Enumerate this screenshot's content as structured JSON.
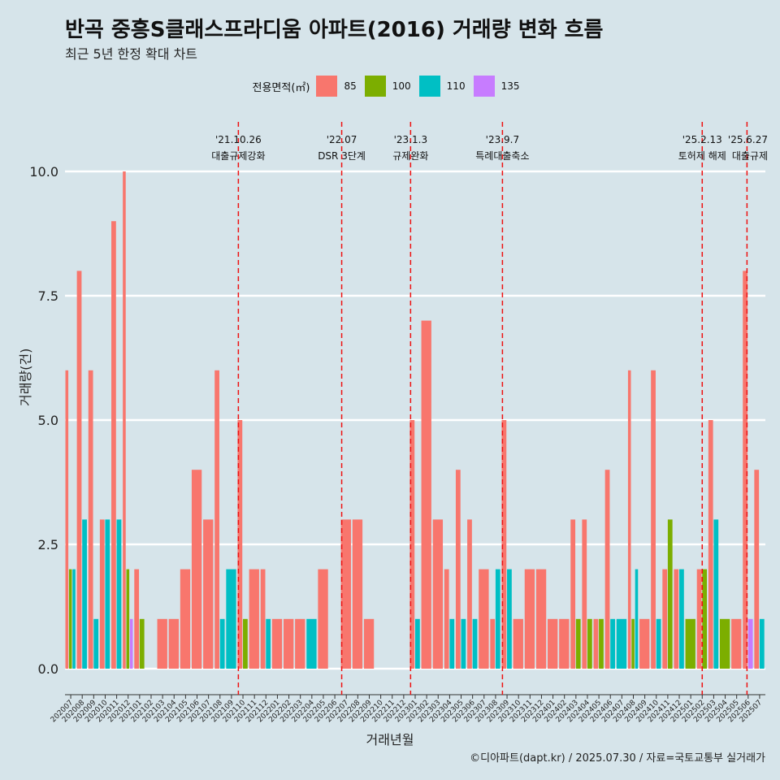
{
  "title": "반곡 중흥S클래스프라디움 아파트(2016) 거래량 변화 흐름",
  "subtitle": "최근 5년 한정 확대 차트",
  "caption": "©디아파트(dapt.kr) / 2025.07.30 / 자료=국토교통부 실거래가",
  "legend": {
    "title": "전용면적(㎡)",
    "items": [
      {
        "label": "85",
        "color": "#f8766d"
      },
      {
        "label": "100",
        "color": "#7cae00"
      },
      {
        "label": "110",
        "color": "#00bfc4"
      },
      {
        "label": "135",
        "color": "#c77cff"
      }
    ]
  },
  "chart_data": {
    "type": "bar",
    "title": "반곡 중흥S클래스프라디움 아파트(2016) 거래량 변화 흐름",
    "xlabel": "거래년월",
    "ylabel": "거래량(건)",
    "ylim": [
      0,
      10
    ],
    "yticks": [
      "0.0",
      "2.5",
      "5.0",
      "7.5",
      "10.0"
    ],
    "categories": [
      "202007",
      "202008",
      "202009",
      "202010",
      "202011",
      "202012",
      "202101",
      "202102",
      "202103",
      "202104",
      "202105",
      "202106",
      "202107",
      "202108",
      "202109",
      "202110",
      "202111",
      "202112",
      "202201",
      "202202",
      "202203",
      "202204",
      "202205",
      "202206",
      "202207",
      "202208",
      "202209",
      "202210",
      "202211",
      "202212",
      "202301",
      "202302",
      "202303",
      "202304",
      "202305",
      "202306",
      "202307",
      "202308",
      "202309",
      "202310",
      "202311",
      "202312",
      "202401",
      "202402",
      "202403",
      "202404",
      "202405",
      "202406",
      "202407",
      "202408",
      "202409",
      "202410",
      "202411",
      "202412",
      "202501",
      "202502",
      "202503",
      "202504",
      "202505",
      "202506",
      "202507"
    ],
    "series": [
      {
        "name": "85",
        "values": [
          6,
          8,
          6,
          3,
          9,
          10,
          2,
          0,
          1,
          1,
          2,
          4,
          3,
          6,
          0,
          5,
          2,
          2,
          1,
          1,
          1,
          0,
          2,
          0,
          3,
          3,
          1,
          0,
          0,
          0,
          5,
          7,
          3,
          2,
          4,
          3,
          2,
          1,
          5,
          1,
          2,
          2,
          1,
          1,
          3,
          3,
          1,
          4,
          0,
          6,
          1,
          6,
          2,
          2,
          0,
          2,
          5,
          0,
          1,
          8,
          4
        ]
      },
      {
        "name": "100",
        "values": [
          2,
          0,
          0,
          0,
          0,
          2,
          1,
          0,
          0,
          0,
          0,
          0,
          0,
          0,
          0,
          1,
          0,
          0,
          0,
          0,
          0,
          0,
          0,
          0,
          0,
          0,
          0,
          0,
          0,
          0,
          0,
          0,
          0,
          0,
          0,
          0,
          0,
          0,
          0,
          0,
          0,
          0,
          0,
          0,
          1,
          1,
          1,
          0,
          0,
          1,
          0,
          0,
          3,
          0,
          1,
          2,
          0,
          1,
          0,
          0,
          0
        ]
      },
      {
        "name": "110",
        "values": [
          2,
          3,
          1,
          3,
          3,
          0,
          0,
          0,
          0,
          0,
          0,
          0,
          0,
          1,
          2,
          0,
          0,
          1,
          0,
          0,
          0,
          1,
          0,
          0,
          0,
          0,
          0,
          0,
          0,
          0,
          1,
          0,
          0,
          1,
          1,
          1,
          0,
          2,
          2,
          0,
          0,
          0,
          0,
          0,
          0,
          0,
          0,
          1,
          1,
          2,
          0,
          1,
          0,
          2,
          0,
          0,
          3,
          0,
          0,
          0,
          1
        ]
      },
      {
        "name": "135",
        "values": [
          0,
          0,
          0,
          0,
          0,
          1,
          0,
          0,
          0,
          0,
          0,
          0,
          0,
          0,
          0,
          0,
          0,
          0,
          0,
          0,
          0,
          0,
          0,
          0,
          0,
          0,
          0,
          0,
          0,
          0,
          0,
          0,
          0,
          0,
          0,
          0,
          0,
          0,
          0,
          0,
          0,
          0,
          0,
          0,
          0,
          0,
          0,
          0,
          0,
          0,
          0,
          0,
          0,
          0,
          0,
          0,
          0,
          0,
          0,
          1,
          0
        ]
      }
    ],
    "annotations": [
      {
        "x": 15.1,
        "date": "'21.10.26",
        "label": "대출규제강화"
      },
      {
        "x": 24.1,
        "date": "'22.07",
        "label": "DSR 3단계"
      },
      {
        "x": 30.1,
        "date": "'23.1.3",
        "label": "규제완화"
      },
      {
        "x": 38.1,
        "date": "'23.9.7",
        "label": "특례대출축소"
      },
      {
        "x": 55.5,
        "date": "'25.2.13",
        "label": "토허제 해제"
      },
      {
        "x": 59.4,
        "date": "'25.6.27",
        "label": "대출규제"
      }
    ]
  }
}
